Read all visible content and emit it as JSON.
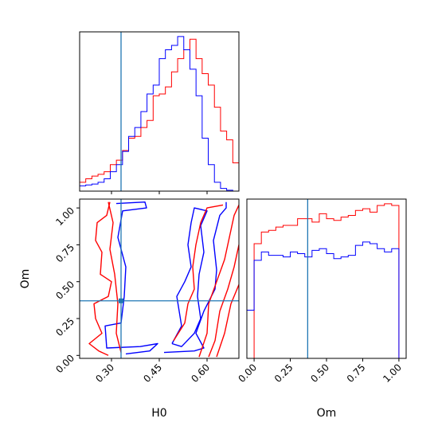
{
  "chart_data": {
    "type": "corner",
    "parameters": [
      "H0",
      "Om"
    ],
    "colors": {
      "red": "#ff0000",
      "blue": "#0000ff",
      "truth": "#1f77b4"
    },
    "truth": {
      "H0": 0.33,
      "Om": 0.37
    },
    "panels": [
      {
        "name": "H0-marginal",
        "type": "histogram",
        "xlim": [
          0.2,
          0.7
        ],
        "x_ticks": [
          0.3,
          0.45,
          0.6
        ],
        "bin_edges": [
          0.2,
          0.2192,
          0.2385,
          0.2577,
          0.2769,
          0.2962,
          0.3154,
          0.3346,
          0.3538,
          0.3731,
          0.3923,
          0.4115,
          0.4308,
          0.45,
          0.4692,
          0.4885,
          0.5077,
          0.5269,
          0.5462,
          0.5654,
          0.5846,
          0.6038,
          0.6231,
          0.6423,
          0.6615,
          0.6808,
          0.7
        ],
        "series": [
          {
            "color": "red",
            "counts": [
              10,
              14,
              17,
              19,
              22,
              30,
              35,
              46,
              60,
              62,
              72,
              80,
              108,
              110,
              118,
              135,
              150,
              160,
              172,
              150,
              133,
              120,
              95,
              68,
              58,
              32
            ]
          },
          {
            "color": "blue",
            "counts": [
              6,
              7,
              8,
              10,
              14,
              22,
              30,
              45,
              62,
              72,
              90,
              110,
              120,
              150,
              160,
              165,
              175,
              160,
              138,
              108,
              60,
              30,
              10,
              3,
              1,
              0
            ]
          }
        ]
      },
      {
        "name": "Om-marginal",
        "type": "histogram",
        "xlim": [
          -0.05,
          1.05
        ],
        "x_ticks": [
          0.0,
          0.25,
          0.5,
          0.75,
          1.0
        ],
        "x_tick_labels": [
          "0.00",
          "0.25",
          "0.50",
          "0.75",
          "1.00"
        ],
        "bin_edges": [
          -0.05,
          0.0,
          0.05,
          0.1,
          0.15,
          0.2,
          0.25,
          0.3,
          0.35,
          0.4,
          0.45,
          0.5,
          0.55,
          0.6,
          0.65,
          0.7,
          0.75,
          0.8,
          0.85,
          0.9,
          0.95,
          1.0,
          1.05
        ],
        "series": [
          {
            "color": "red",
            "counts": [
              0,
              69,
              76,
              77,
              79,
              80,
              80,
              84,
              84,
              82,
              87,
              84,
              83,
              85,
              86,
              89,
              90,
              88,
              92,
              93,
              92,
              0
            ]
          },
          {
            "color": "blue",
            "counts": [
              29,
              59,
              64,
              62,
              62,
              61,
              64,
              63,
              61,
              65,
              66,
              63,
              60,
              61,
              62,
              68,
              70,
              69,
              66,
              64,
              66,
              0
            ]
          }
        ]
      },
      {
        "name": "H0-Om-contours",
        "type": "contour",
        "xlabel": "H0",
        "ylabel": "Om",
        "xlim": [
          0.2,
          0.7
        ],
        "ylim": [
          -0.02,
          1.06
        ],
        "x_ticks": [
          0.3,
          0.45,
          0.6
        ],
        "y_ticks": [
          0.0,
          0.25,
          0.5,
          0.75,
          1.0
        ],
        "x_tick_labels": [
          "0.30",
          "0.45",
          "0.60"
        ],
        "y_tick_labels": [
          "0.00",
          "0.25",
          "0.50",
          "0.75",
          "1.00"
        ],
        "contours": [
          {
            "color": "blue",
            "points": [
              [
                0.315,
                1.03
              ],
              [
                0.405,
                1.04
              ],
              [
                0.41,
                1.0
              ],
              [
                0.335,
                0.98
              ],
              [
                0.32,
                0.8
              ],
              [
                0.345,
                0.6
              ],
              [
                0.34,
                0.4
              ],
              [
                0.33,
                0.22
              ],
              [
                0.28,
                0.2
              ],
              [
                0.285,
                0.05
              ],
              [
                0.39,
                0.06
              ],
              [
                0.445,
                0.08
              ],
              [
                0.42,
                0.03
              ],
              [
                0.345,
                0.01
              ]
            ]
          },
          {
            "color": "blue",
            "points": [
              [
                0.465,
                0.02
              ],
              [
                0.56,
                0.03
              ],
              [
                0.59,
                0.05
              ],
              [
                0.565,
                0.15
              ],
              [
                0.59,
                0.3
              ],
              [
                0.625,
                0.45
              ],
              [
                0.63,
                0.58
              ],
              [
                0.62,
                0.78
              ],
              [
                0.64,
                0.95
              ],
              [
                0.66,
                1.0
              ],
              [
                0.66,
                1.04
              ]
            ]
          },
          {
            "color": "blue",
            "points": [
              [
                0.49,
                0.08
              ],
              [
                0.52,
                0.2
              ],
              [
                0.505,
                0.4
              ],
              [
                0.53,
                0.5
              ],
              [
                0.55,
                0.6
              ],
              [
                0.54,
                0.75
              ],
              [
                0.55,
                0.9
              ],
              [
                0.56,
                1.0
              ],
              [
                0.6,
                0.98
              ],
              [
                0.58,
                0.88
              ],
              [
                0.59,
                0.7
              ],
              [
                0.575,
                0.55
              ],
              [
                0.57,
                0.4
              ],
              [
                0.58,
                0.25
              ],
              [
                0.56,
                0.15
              ],
              [
                0.52,
                0.06
              ],
              [
                0.49,
                0.08
              ]
            ]
          },
          {
            "color": "red",
            "points": [
              [
                0.295,
                1.04
              ],
              [
                0.285,
                0.95
              ],
              [
                0.255,
                0.9
              ],
              [
                0.25,
                0.78
              ],
              [
                0.27,
                0.7
              ],
              [
                0.265,
                0.55
              ],
              [
                0.3,
                0.5
              ],
              [
                0.29,
                0.4
              ],
              [
                0.245,
                0.35
              ],
              [
                0.25,
                0.25
              ],
              [
                0.27,
                0.15
              ],
              [
                0.23,
                0.08
              ],
              [
                0.26,
                0.03
              ],
              [
                0.29,
                0.0
              ]
            ]
          },
          {
            "color": "red",
            "points": [
              [
                0.29,
                1.04
              ],
              [
                0.305,
                0.9
              ],
              [
                0.295,
                0.72
              ],
              [
                0.31,
                0.55
              ],
              [
                0.32,
                0.35
              ],
              [
                0.315,
                0.15
              ],
              [
                0.33,
                0.02
              ]
            ]
          },
          {
            "color": "red",
            "points": [
              [
                0.575,
                -0.01
              ],
              [
                0.6,
                0.15
              ],
              [
                0.605,
                0.35
              ],
              [
                0.63,
                0.5
              ],
              [
                0.655,
                0.65
              ],
              [
                0.67,
                0.8
              ],
              [
                0.685,
                0.95
              ],
              [
                0.7,
                1.02
              ]
            ]
          },
          {
            "color": "red",
            "points": [
              [
                0.605,
                -0.01
              ],
              [
                0.625,
                0.1
              ],
              [
                0.64,
                0.3
              ],
              [
                0.665,
                0.45
              ],
              [
                0.685,
                0.6
              ],
              [
                0.7,
                0.75
              ]
            ]
          },
          {
            "color": "red",
            "points": [
              [
                0.63,
                -0.01
              ],
              [
                0.655,
                0.15
              ],
              [
                0.675,
                0.35
              ],
              [
                0.7,
                0.48
              ]
            ]
          },
          {
            "color": "red",
            "points": [
              [
                0.495,
                0.1
              ],
              [
                0.53,
                0.22
              ],
              [
                0.54,
                0.35
              ],
              [
                0.56,
                0.45
              ],
              [
                0.555,
                0.6
              ],
              [
                0.565,
                0.75
              ],
              [
                0.58,
                0.9
              ],
              [
                0.6,
                1.0
              ],
              [
                0.65,
                1.02
              ]
            ]
          }
        ]
      }
    ]
  }
}
